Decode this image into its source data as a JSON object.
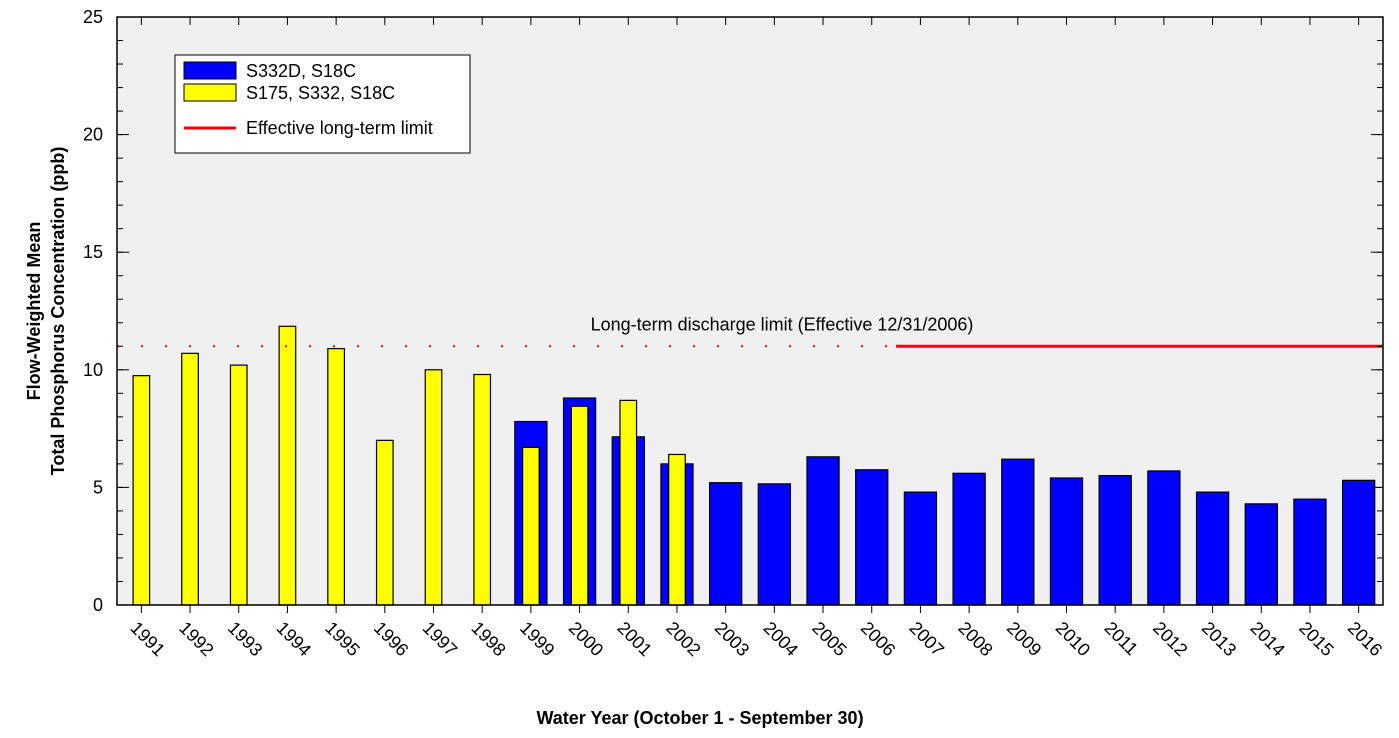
{
  "chart_data": {
    "type": "bar",
    "xlabel": "Water Year (October 1 - September 30)",
    "ylabel": [
      "Flow-Weighted Mean",
      "Total Phosphorus Concentration (ppb)"
    ],
    "categories": [
      "1991",
      "1992",
      "1993",
      "1994",
      "1995",
      "1996",
      "1997",
      "1998",
      "1999",
      "2000",
      "2001",
      "2002",
      "2003",
      "2004",
      "2005",
      "2006",
      "2007",
      "2008",
      "2009",
      "2010",
      "2011",
      "2012",
      "2013",
      "2014",
      "2015",
      "2016"
    ],
    "series": [
      {
        "name": "S332D, S18C",
        "color": "#0000ff",
        "values": [
          null,
          null,
          null,
          null,
          null,
          null,
          null,
          null,
          7.8,
          8.8,
          7.15,
          6.0,
          5.2,
          5.15,
          6.3,
          5.75,
          4.8,
          5.6,
          6.2,
          5.4,
          5.5,
          5.7,
          4.8,
          4.3,
          4.5,
          5.3
        ]
      },
      {
        "name": "S175, S332, S18C",
        "color": "#ffff00",
        "values": [
          9.75,
          10.7,
          10.2,
          11.85,
          10.9,
          7.0,
          10.0,
          9.8,
          6.7,
          8.45,
          8.7,
          6.4,
          null,
          null,
          null,
          null,
          null,
          null,
          null,
          null,
          null,
          null,
          null,
          null,
          null,
          null
        ]
      }
    ],
    "reference_line": {
      "name": "Effective long-term limit",
      "value": 11,
      "color": "#ff0000",
      "annotation": "Long-term discharge limit (Effective 12/31/2006)"
    },
    "ylim": [
      0,
      25
    ],
    "yticks": [
      0,
      5,
      10,
      15,
      20,
      25
    ],
    "grid": false
  }
}
